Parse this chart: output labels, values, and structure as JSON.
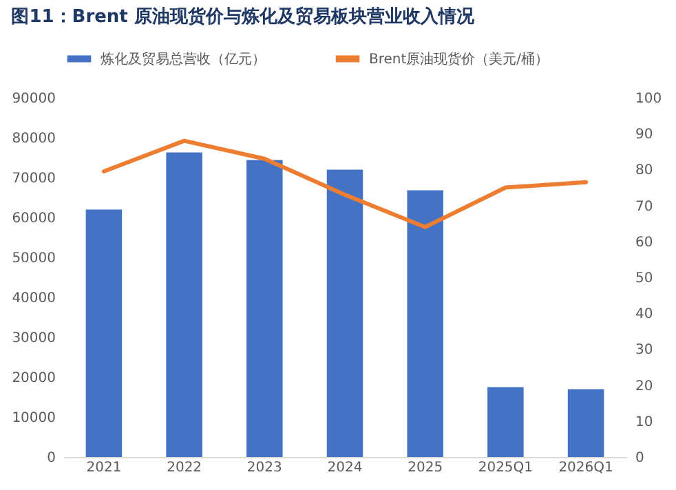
{
  "chart_data": {
    "type": "bar",
    "title": "图11：Brent 原油现货价与炼化及贸易板块营业收入情况",
    "categories": [
      "2021",
      "2022",
      "2023",
      "2024",
      "2025",
      "2025Q1",
      "2026Q1"
    ],
    "series": [
      {
        "name": "炼化及贸易总营收（亿元）",
        "color": "#4472c4",
        "values": [
          62000,
          76300,
          74400,
          72000,
          66800,
          17500,
          17000
        ]
      },
      {
        "name": "Brent原油现货价（美元/桶）",
        "type": "line",
        "axis": "y2",
        "color": "#ed7d31",
        "values": [
          79.5,
          88,
          83,
          73,
          64,
          75,
          76.5
        ]
      }
    ],
    "ylim": [
      0,
      90000
    ],
    "yticks": [
      0,
      10000,
      20000,
      30000,
      40000,
      50000,
      60000,
      70000,
      80000,
      90000
    ],
    "y2lim": [
      0,
      100
    ],
    "y2ticks": [
      0,
      10,
      20,
      30,
      40,
      50,
      60,
      70,
      80,
      90,
      100
    ],
    "legend": "top",
    "grid": false,
    "marker": "none",
    "line_style": "solid"
  }
}
